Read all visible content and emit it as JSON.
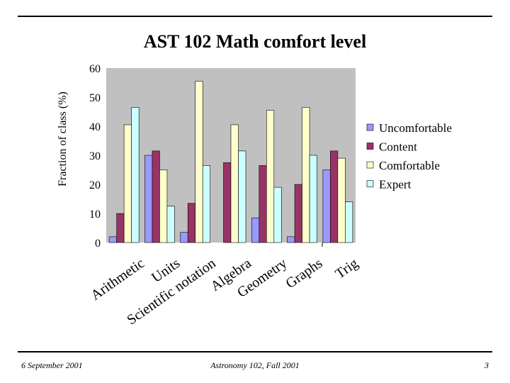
{
  "slide": {
    "title": "AST 102 Math comfort level",
    "footer_left": "6 September 2001",
    "footer_center": "Astronomy 102, Fall 2001",
    "footer_right": "3"
  },
  "chart_data": {
    "type": "bar",
    "title": "AST 102 Math comfort level",
    "xlabel": "",
    "ylabel": "Fraction of class (%)",
    "ylim": [
      0,
      60
    ],
    "yticks": [
      0,
      10,
      20,
      30,
      40,
      50,
      60
    ],
    "grid": false,
    "legend_position": "right",
    "categories": [
      "Arithmetic",
      "Units",
      "Scientific notation",
      "Algebra",
      "Geometry",
      "Graphs",
      "Trig"
    ],
    "series": [
      {
        "name": "Uncomfortable",
        "color": "#9999ff",
        "values": [
          2,
          30,
          3.5,
          0,
          8.5,
          2,
          25
        ]
      },
      {
        "name": "Content",
        "color": "#993366",
        "values": [
          10,
          31.5,
          13.5,
          27.5,
          26.5,
          20,
          31.5
        ]
      },
      {
        "name": "Comfortable",
        "color": "#ffffcc",
        "values": [
          40.5,
          25,
          55.5,
          40.5,
          45.5,
          46.5,
          29
        ]
      },
      {
        "name": "Expert",
        "color": "#ccffff",
        "values": [
          46.5,
          12.5,
          26.5,
          31.5,
          19,
          30,
          14
        ]
      }
    ],
    "plot_background": "#c0c0c0"
  }
}
